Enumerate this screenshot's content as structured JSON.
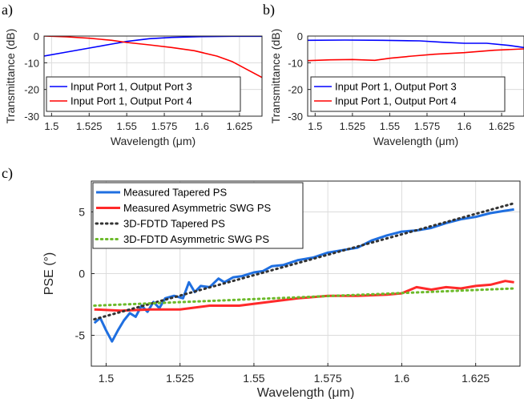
{
  "panel_labels": [
    "a)",
    "b)",
    "c)"
  ],
  "chart_data": [
    {
      "id": "a",
      "type": "line",
      "xlabel": "Wavelength (μm)",
      "ylabel": "Transmittance (dB)",
      "xlim": [
        1.495,
        1.64
      ],
      "ylim": [
        -30,
        0
      ],
      "xticks": [
        1.5,
        1.525,
        1.55,
        1.575,
        1.6,
        1.625
      ],
      "xtick_labels": [
        "1.5",
        "1.525",
        "1.55",
        "1.575",
        "1.6",
        "1.625"
      ],
      "yticks": [
        0,
        -10,
        -20,
        -30
      ],
      "ytick_labels": [
        "0",
        "-10",
        "-20",
        "-30"
      ],
      "grid": true,
      "legend_position": "bottom-left",
      "series": [
        {
          "name": "Input Port 1, Output Port 3",
          "color": "#0000ff",
          "dash": "none",
          "width": 1.6,
          "x": [
            1.495,
            1.51,
            1.525,
            1.54,
            1.55,
            1.565,
            1.58,
            1.6,
            1.62,
            1.64
          ],
          "y": [
            -7.5,
            -6,
            -4.5,
            -3,
            -2,
            -1,
            -0.5,
            -0.2,
            -0.1,
            -0.1
          ]
        },
        {
          "name": "Input Port 1, Output Port 4",
          "color": "#ff0000",
          "dash": "none",
          "width": 1.6,
          "x": [
            1.495,
            1.51,
            1.525,
            1.54,
            1.55,
            1.565,
            1.58,
            1.595,
            1.61,
            1.62,
            1.63,
            1.64
          ],
          "y": [
            0,
            -0.3,
            -0.8,
            -1.6,
            -2.4,
            -3.3,
            -4.3,
            -5.5,
            -7.5,
            -9.5,
            -12.5,
            -15.5
          ]
        }
      ]
    },
    {
      "id": "b",
      "type": "line",
      "xlabel": "Wavelength (μm)",
      "ylabel": "Transmittance (dB)",
      "xlim": [
        1.495,
        1.64
      ],
      "ylim": [
        -30,
        0
      ],
      "xticks": [
        1.5,
        1.525,
        1.55,
        1.575,
        1.6,
        1.625
      ],
      "xtick_labels": [
        "1.5",
        "1.525",
        "1.55",
        "1.575",
        "1.6",
        "1.625"
      ],
      "yticks": [
        0,
        -10,
        -20,
        -30
      ],
      "ytick_labels": [
        "0",
        "-10",
        "-20",
        "-30"
      ],
      "grid": true,
      "legend_position": "bottom-left",
      "series": [
        {
          "name": "Input Port 1, Output Port 3",
          "color": "#0000ff",
          "dash": "none",
          "width": 1.6,
          "x": [
            1.495,
            1.52,
            1.545,
            1.57,
            1.585,
            1.6,
            1.615,
            1.63,
            1.64
          ],
          "y": [
            -1.6,
            -1.5,
            -1.6,
            -1.8,
            -2.3,
            -2.7,
            -2.7,
            -3.5,
            -4.3
          ]
        },
        {
          "name": "Input Port 1, Output Port 4",
          "color": "#ff0000",
          "dash": "none",
          "width": 1.6,
          "x": [
            1.495,
            1.51,
            1.525,
            1.54,
            1.55,
            1.565,
            1.58,
            1.6,
            1.62,
            1.64
          ],
          "y": [
            -9.2,
            -8.9,
            -8.8,
            -9.1,
            -8.3,
            -7.5,
            -6.8,
            -6.2,
            -5.3,
            -4.8
          ]
        }
      ]
    },
    {
      "id": "c",
      "type": "line",
      "xlabel": "Wavelength (μm)",
      "ylabel": "PSE (°)",
      "xlim": [
        1.495,
        1.64
      ],
      "ylim": [
        -7.5,
        7.5
      ],
      "xticks": [
        1.5,
        1.525,
        1.55,
        1.575,
        1.6,
        1.625
      ],
      "xtick_labels": [
        "1.5",
        "1.525",
        "1.55",
        "1.575",
        "1.6",
        "1.625"
      ],
      "yticks": [
        5,
        0,
        -5
      ],
      "ytick_labels": [
        "5",
        "0",
        "-5"
      ],
      "grid": true,
      "legend_position": "top-left",
      "series": [
        {
          "name": "Measured Tapered PS",
          "color": "#1f6fe0",
          "dash": "none",
          "width": 3,
          "x": [
            1.496,
            1.498,
            1.5,
            1.502,
            1.504,
            1.506,
            1.508,
            1.51,
            1.512,
            1.514,
            1.516,
            1.518,
            1.52,
            1.523,
            1.526,
            1.528,
            1.53,
            1.532,
            1.535,
            1.538,
            1.54,
            1.543,
            1.546,
            1.55,
            1.553,
            1.556,
            1.56,
            1.565,
            1.57,
            1.575,
            1.58,
            1.585,
            1.59,
            1.595,
            1.6,
            1.605,
            1.61,
            1.615,
            1.62,
            1.625,
            1.63,
            1.635,
            1.638
          ],
          "y": [
            -4.0,
            -3.6,
            -4.6,
            -5.5,
            -4.6,
            -3.8,
            -3.2,
            -3.5,
            -2.6,
            -3.1,
            -2.3,
            -2.8,
            -2.0,
            -1.8,
            -2.0,
            -0.7,
            -1.5,
            -1.0,
            -1.1,
            -0.4,
            -0.7,
            -0.3,
            -0.2,
            0.1,
            0.2,
            0.6,
            0.7,
            1.1,
            1.3,
            1.7,
            1.9,
            2.1,
            2.7,
            3.1,
            3.4,
            3.5,
            3.7,
            4.1,
            4.4,
            4.6,
            4.9,
            5.1,
            5.2
          ]
        },
        {
          "name": "Measured Asymmetric SWG PS",
          "color": "#ff2a2a",
          "dash": "none",
          "width": 3,
          "x": [
            1.496,
            1.505,
            1.515,
            1.525,
            1.535,
            1.545,
            1.555,
            1.565,
            1.575,
            1.585,
            1.595,
            1.6,
            1.605,
            1.61,
            1.615,
            1.62,
            1.625,
            1.63,
            1.635,
            1.638
          ],
          "y": [
            -2.9,
            -3.0,
            -2.9,
            -2.9,
            -2.6,
            -2.6,
            -2.3,
            -2.0,
            -1.8,
            -1.8,
            -1.7,
            -1.6,
            -1.1,
            -1.3,
            -1.1,
            -1.2,
            -1.0,
            -0.9,
            -0.6,
            -0.7
          ]
        },
        {
          "name": "3D-FDTD Tapered PS",
          "color": "#333333",
          "dash": "1.6 4.6",
          "width": 3,
          "x": [
            1.496,
            1.638
          ],
          "y": [
            -3.7,
            5.7
          ]
        },
        {
          "name": "3D-FDTD Asymmetric SWG PS",
          "color": "#6cba2a",
          "dash": "1.6 4.6",
          "width": 3,
          "x": [
            1.496,
            1.638
          ],
          "y": [
            -2.6,
            -1.2
          ]
        }
      ]
    }
  ]
}
